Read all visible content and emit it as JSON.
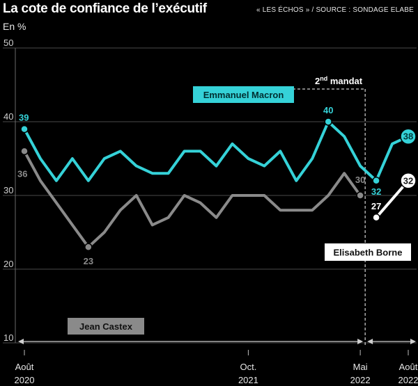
{
  "title": "La cote de confiance de l’exécutif",
  "source": "« LES ÉCHOS » / SOURCE : SONDAGE ELABE",
  "unit": "En %",
  "chart_data": {
    "type": "line",
    "ylim": [
      10,
      50
    ],
    "yticks": [
      "10",
      "20",
      "30",
      "40",
      "50"
    ],
    "x_range": [
      0,
      24
    ],
    "xticks": [
      {
        "x": 0,
        "line1": "Août",
        "line2": "2020"
      },
      {
        "x": 14,
        "line1": "Oct.",
        "line2": "2021"
      },
      {
        "x": 21,
        "line1": "Mai",
        "line2": "2022"
      },
      {
        "x": 24,
        "line1": "Août",
        "line2": "2022"
      }
    ],
    "second_term_x": 21,
    "second_term_label": "2",
    "second_term_sup": "nd",
    "second_term_suffix": " mandat",
    "series": [
      {
        "name": "Emmanuel Macron",
        "color": "#35d2d8",
        "x": [
          0,
          1,
          2,
          3,
          4,
          5,
          6,
          7,
          8,
          9,
          10,
          11,
          12,
          13,
          14,
          15,
          16,
          17,
          18,
          19,
          20,
          21,
          22,
          23,
          24
        ],
        "values": [
          39,
          35,
          32,
          35,
          32,
          35,
          36,
          34,
          33,
          33,
          36,
          36,
          34,
          37,
          35,
          34,
          36,
          32,
          35,
          40,
          38,
          34,
          32,
          37,
          38
        ],
        "labels": [
          {
            "i": 0,
            "text": "39"
          },
          {
            "i": 19,
            "text": "40"
          },
          {
            "i": 22,
            "text": "32"
          },
          {
            "i": 24,
            "text": "38"
          }
        ]
      },
      {
        "name": "Jean Castex",
        "color": "#8a8a8a",
        "x": [
          0,
          1,
          2,
          3,
          4,
          5,
          6,
          7,
          8,
          9,
          10,
          11,
          12,
          13,
          14,
          15,
          16,
          17,
          18,
          19,
          20,
          21
        ],
        "values": [
          36,
          32,
          29,
          26,
          23,
          25,
          28,
          30,
          26,
          27,
          30,
          29,
          27,
          30,
          30,
          30,
          28,
          28,
          28,
          30,
          33,
          30
        ],
        "labels": [
          {
            "i": 0,
            "text": "36"
          },
          {
            "i": 4,
            "text": "23"
          },
          {
            "i": 21,
            "text": "30"
          }
        ]
      },
      {
        "name": "Elisabeth Borne",
        "color": "#ffffff",
        "x": [
          22,
          23,
          24
        ],
        "values": [
          27,
          29.5,
          32
        ],
        "labels": [
          {
            "i": 0,
            "text": "27"
          },
          {
            "i": 2,
            "text": "32"
          }
        ]
      }
    ]
  }
}
